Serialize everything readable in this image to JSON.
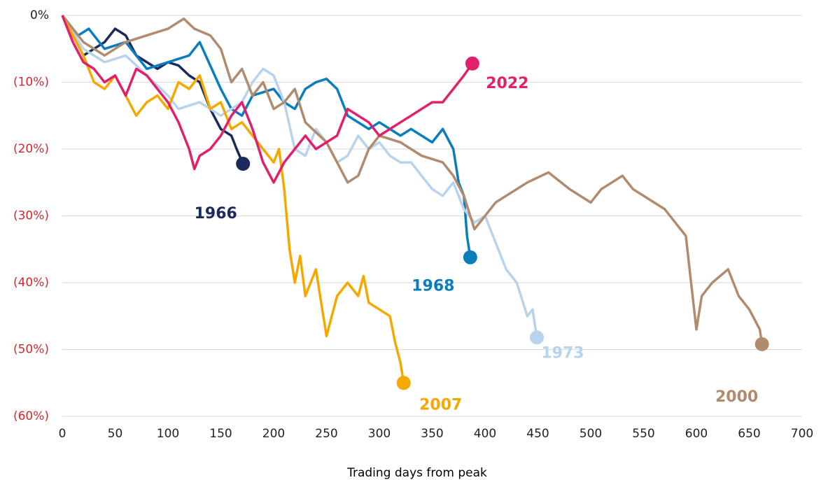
{
  "chart_data": {
    "type": "line",
    "x_label": "Trading days from peak",
    "xlim": [
      0,
      700
    ],
    "xticks": [
      0,
      50,
      100,
      150,
      200,
      250,
      300,
      350,
      400,
      450,
      500,
      550,
      600,
      650,
      700
    ],
    "ylim": [
      -60,
      0
    ],
    "yticks": [
      {
        "value": 0,
        "label": "0%"
      },
      {
        "value": -10,
        "label": "(10%)"
      },
      {
        "value": -20,
        "label": "(20%)"
      },
      {
        "value": -30,
        "label": "(30%)"
      },
      {
        "value": -40,
        "label": "(40%)"
      },
      {
        "value": -50,
        "label": "(50%)"
      },
      {
        "value": -60,
        "label": "(60%)"
      }
    ],
    "grid": true,
    "series": [
      {
        "name": "1966",
        "color": "#1b2a5c",
        "x": [
          0,
          10,
          20,
          30,
          40,
          50,
          55,
          60,
          70,
          80,
          90,
          100,
          110,
          120,
          130,
          140,
          150,
          160,
          165,
          171
        ],
        "values": [
          0,
          -3,
          -6,
          -5,
          -4,
          -2,
          -2.5,
          -3,
          -6,
          -7,
          -8,
          -7,
          -7.5,
          -9,
          -10,
          -14,
          -17,
          -18,
          -20,
          -22.2
        ]
      },
      {
        "name": "1968",
        "color": "#0a7dbd",
        "x": [
          0,
          15,
          25,
          40,
          60,
          80,
          100,
          120,
          130,
          150,
          160,
          170,
          180,
          200,
          210,
          220,
          230,
          240,
          250,
          260,
          270,
          290,
          300,
          310,
          320,
          330,
          340,
          350,
          360,
          370,
          375,
          380,
          383,
          386
        ],
        "values": [
          0,
          -3,
          -2,
          -5,
          -4,
          -8,
          -7,
          -6,
          -4,
          -11,
          -14,
          -15,
          -12,
          -11,
          -13,
          -14,
          -11,
          -10,
          -9.5,
          -11,
          -15,
          -17,
          -16,
          -17,
          -18,
          -17,
          -18,
          -19,
          -17,
          -20,
          -25,
          -27,
          -33,
          -36.2
        ]
      },
      {
        "name": "1973",
        "color": "#b8d3ec",
        "x": [
          0,
          20,
          40,
          60,
          80,
          100,
          110,
          130,
          150,
          170,
          180,
          190,
          200,
          210,
          220,
          230,
          240,
          250,
          260,
          270,
          280,
          290,
          300,
          310,
          320,
          330,
          340,
          350,
          360,
          370,
          380,
          390,
          400,
          410,
          420,
          430,
          440,
          445,
          449
        ],
        "values": [
          0,
          -5,
          -7,
          -6,
          -9,
          -12,
          -14,
          -13,
          -15,
          -13,
          -10,
          -8,
          -9,
          -13,
          -20,
          -21,
          -17,
          -19,
          -22,
          -21,
          -18,
          -20,
          -19,
          -21,
          -22,
          -22,
          -24,
          -26,
          -27,
          -25,
          -29,
          -31,
          -30,
          -34,
          -38,
          -40,
          -45,
          -44,
          -48.2
        ]
      },
      {
        "name": "2000",
        "color": "#b08b6e",
        "x": [
          0,
          20,
          40,
          60,
          80,
          100,
          115,
          125,
          140,
          150,
          160,
          170,
          180,
          190,
          200,
          210,
          220,
          230,
          250,
          260,
          270,
          280,
          290,
          300,
          320,
          340,
          360,
          370,
          380,
          390,
          400,
          410,
          420,
          440,
          460,
          480,
          500,
          510,
          520,
          530,
          540,
          560,
          570,
          580,
          590,
          595,
          600,
          605,
          615,
          630,
          640,
          650,
          660,
          662
        ],
        "values": [
          0,
          -4,
          -6,
          -4,
          -3,
          -2,
          -0.5,
          -2,
          -3,
          -5,
          -10,
          -8,
          -12,
          -10,
          -14,
          -13,
          -11,
          -16,
          -19,
          -22,
          -25,
          -24,
          -20,
          -18,
          -19,
          -21,
          -22,
          -24,
          -27,
          -32,
          -30,
          -28,
          -27,
          -25,
          -23.5,
          -26,
          -28,
          -26,
          -25,
          -24,
          -26,
          -28,
          -29,
          -31,
          -33,
          -40,
          -47,
          -42,
          -40,
          -38,
          -42,
          -44,
          -47,
          -49.2
        ]
      },
      {
        "name": "2007",
        "color": "#f5a800",
        "x": [
          0,
          10,
          20,
          30,
          40,
          50,
          60,
          70,
          80,
          90,
          100,
          110,
          120,
          130,
          140,
          150,
          160,
          170,
          180,
          190,
          200,
          205,
          210,
          215,
          220,
          225,
          230,
          240,
          245,
          250,
          260,
          270,
          280,
          285,
          290,
          300,
          310,
          315,
          320,
          323
        ],
        "values": [
          0,
          -3,
          -6,
          -10,
          -11,
          -9,
          -12,
          -15,
          -13,
          -12,
          -14,
          -10,
          -11,
          -9,
          -14,
          -13,
          -17,
          -16,
          -18,
          -20,
          -22,
          -20,
          -26,
          -35,
          -40,
          -36,
          -42,
          -38,
          -43,
          -48,
          -42,
          -40,
          -42,
          -39,
          -43,
          -44,
          -45,
          -49,
          -52,
          -55
        ]
      },
      {
        "name": "2022",
        "color": "#e0206a",
        "x": [
          0,
          10,
          20,
          30,
          40,
          50,
          60,
          70,
          80,
          90,
          100,
          110,
          120,
          125,
          130,
          140,
          150,
          160,
          170,
          180,
          190,
          200,
          210,
          220,
          230,
          240,
          250,
          260,
          270,
          280,
          290,
          300,
          310,
          320,
          330,
          340,
          350,
          360,
          370,
          380,
          388
        ],
        "values": [
          0,
          -4,
          -7,
          -8,
          -10,
          -9,
          -12,
          -8,
          -9,
          -11,
          -13,
          -16,
          -20,
          -23,
          -21,
          -20,
          -18,
          -15,
          -13,
          -17,
          -22,
          -25,
          -22,
          -20,
          -18,
          -20,
          -19,
          -18,
          -14,
          -15,
          -16,
          -18,
          -17,
          -16,
          -15,
          -14,
          -13,
          -13,
          -11,
          -9,
          -7.2
        ]
      }
    ]
  }
}
